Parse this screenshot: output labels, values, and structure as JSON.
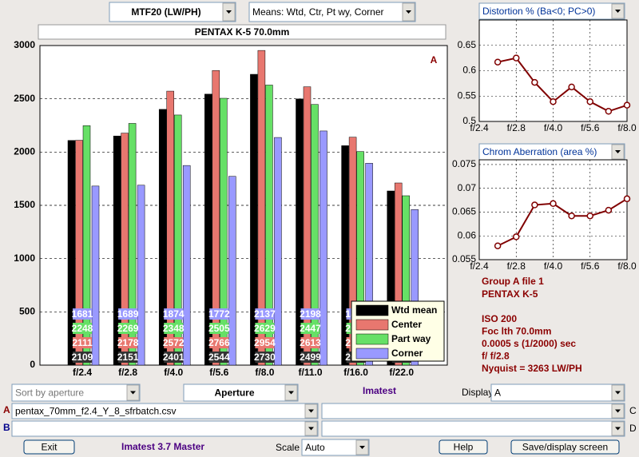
{
  "ui": {
    "measure": "MTF20 (LW/PH)",
    "means": "Means: Wtd, Ctr, Pt wy, Corner",
    "sort": "Sort by aperture",
    "xaxis": "Aperture",
    "brand": "Imatest",
    "display_label": "Display",
    "display": "A",
    "row_a": "A",
    "file_a": "pentax_70mm_f2.4_Y_8_sfrbatch.csv",
    "row_b": "B",
    "row_c": "C",
    "row_d": "D",
    "exit": "Exit",
    "version": "Imatest 3.7 Master",
    "scale_label": "Scale",
    "scale": "Auto",
    "help": "Help",
    "save": "Save/display screen"
  },
  "file_info": [
    "Group A file 1",
    "PENTAX K-5"
  ],
  "exposure": [
    "ISO  200",
    "Foc lth  70.0mm",
    "0.0005 s  (1/2000)  sec",
    "f/  f/2.8",
    "Nyquist = 3263 LW/PH"
  ],
  "chart_data": [
    {
      "type": "bar",
      "title": "PENTAX K-5   70.0mm",
      "annotation": "A",
      "categories": [
        "f/2.4",
        "f/2.8",
        "f/4.0",
        "f/5.6",
        "f/8.0",
        "f/11.0",
        "f/16.0",
        "f/22.0"
      ],
      "series": [
        {
          "name": "Wtd mean",
          "color": "#000000",
          "values": [
            2109,
            2151,
            2401,
            2544,
            2730,
            2499,
            2060,
            1635
          ]
        },
        {
          "name": "Center",
          "color": "#e8776f",
          "values": [
            2111,
            2178,
            2572,
            2766,
            2954,
            2613,
            2140,
            1710
          ]
        },
        {
          "name": "Part way",
          "color": "#66e066",
          "values": [
            2248,
            2269,
            2348,
            2505,
            2629,
            2447,
            2005,
            1590
          ]
        },
        {
          "name": "Corner",
          "color": "#9999ff",
          "values": [
            1681,
            1689,
            1874,
            1772,
            2137,
            2198,
            1895,
            1460
          ]
        }
      ],
      "ylim": [
        0,
        3000
      ],
      "yticks": [
        0,
        500,
        1000,
        1500,
        2000,
        2500,
        3000
      ],
      "grid": true,
      "legend": "lower right"
    },
    {
      "type": "line",
      "title": "Distortion %  (Ba<0; PC>0)",
      "color": "#800000",
      "x": [
        1,
        2,
        3,
        4,
        5,
        6,
        7,
        8
      ],
      "values": [
        0.617,
        0.625,
        0.577,
        0.539,
        0.568,
        0.539,
        0.52,
        0.532
      ],
      "xlim": [
        0,
        8
      ],
      "xticks": [
        {
          "value": 0,
          "label": "f/2.4"
        },
        {
          "value": 2,
          "label": "f/2.8"
        },
        {
          "value": 4,
          "label": "f/4.0"
        },
        {
          "value": 6,
          "label": "f/5.6"
        },
        {
          "value": 8,
          "label": "f/8.0"
        }
      ],
      "ylim": [
        0.5,
        0.7
      ],
      "yticks": [
        0.5,
        0.55,
        0.6,
        0.65
      ],
      "grid": true
    },
    {
      "type": "line",
      "title": "Chrom Aberration (area %)",
      "color": "#800000",
      "x": [
        1,
        2,
        3,
        4,
        5,
        6,
        7,
        8
      ],
      "values": [
        0.0579,
        0.0598,
        0.0665,
        0.0668,
        0.0642,
        0.0642,
        0.0654,
        0.0678
      ],
      "xlim": [
        0,
        8
      ],
      "xticks": [
        {
          "value": 0,
          "label": "f/2.4"
        },
        {
          "value": 2,
          "label": "f/2.8"
        },
        {
          "value": 4,
          "label": "f/4.0"
        },
        {
          "value": 6,
          "label": "f/5.6"
        },
        {
          "value": 8,
          "label": "f/8.0"
        }
      ],
      "ylim": [
        0.055,
        0.076
      ],
      "yticks": [
        0.055,
        0.06,
        0.065,
        0.07,
        0.075
      ],
      "grid": true
    }
  ]
}
